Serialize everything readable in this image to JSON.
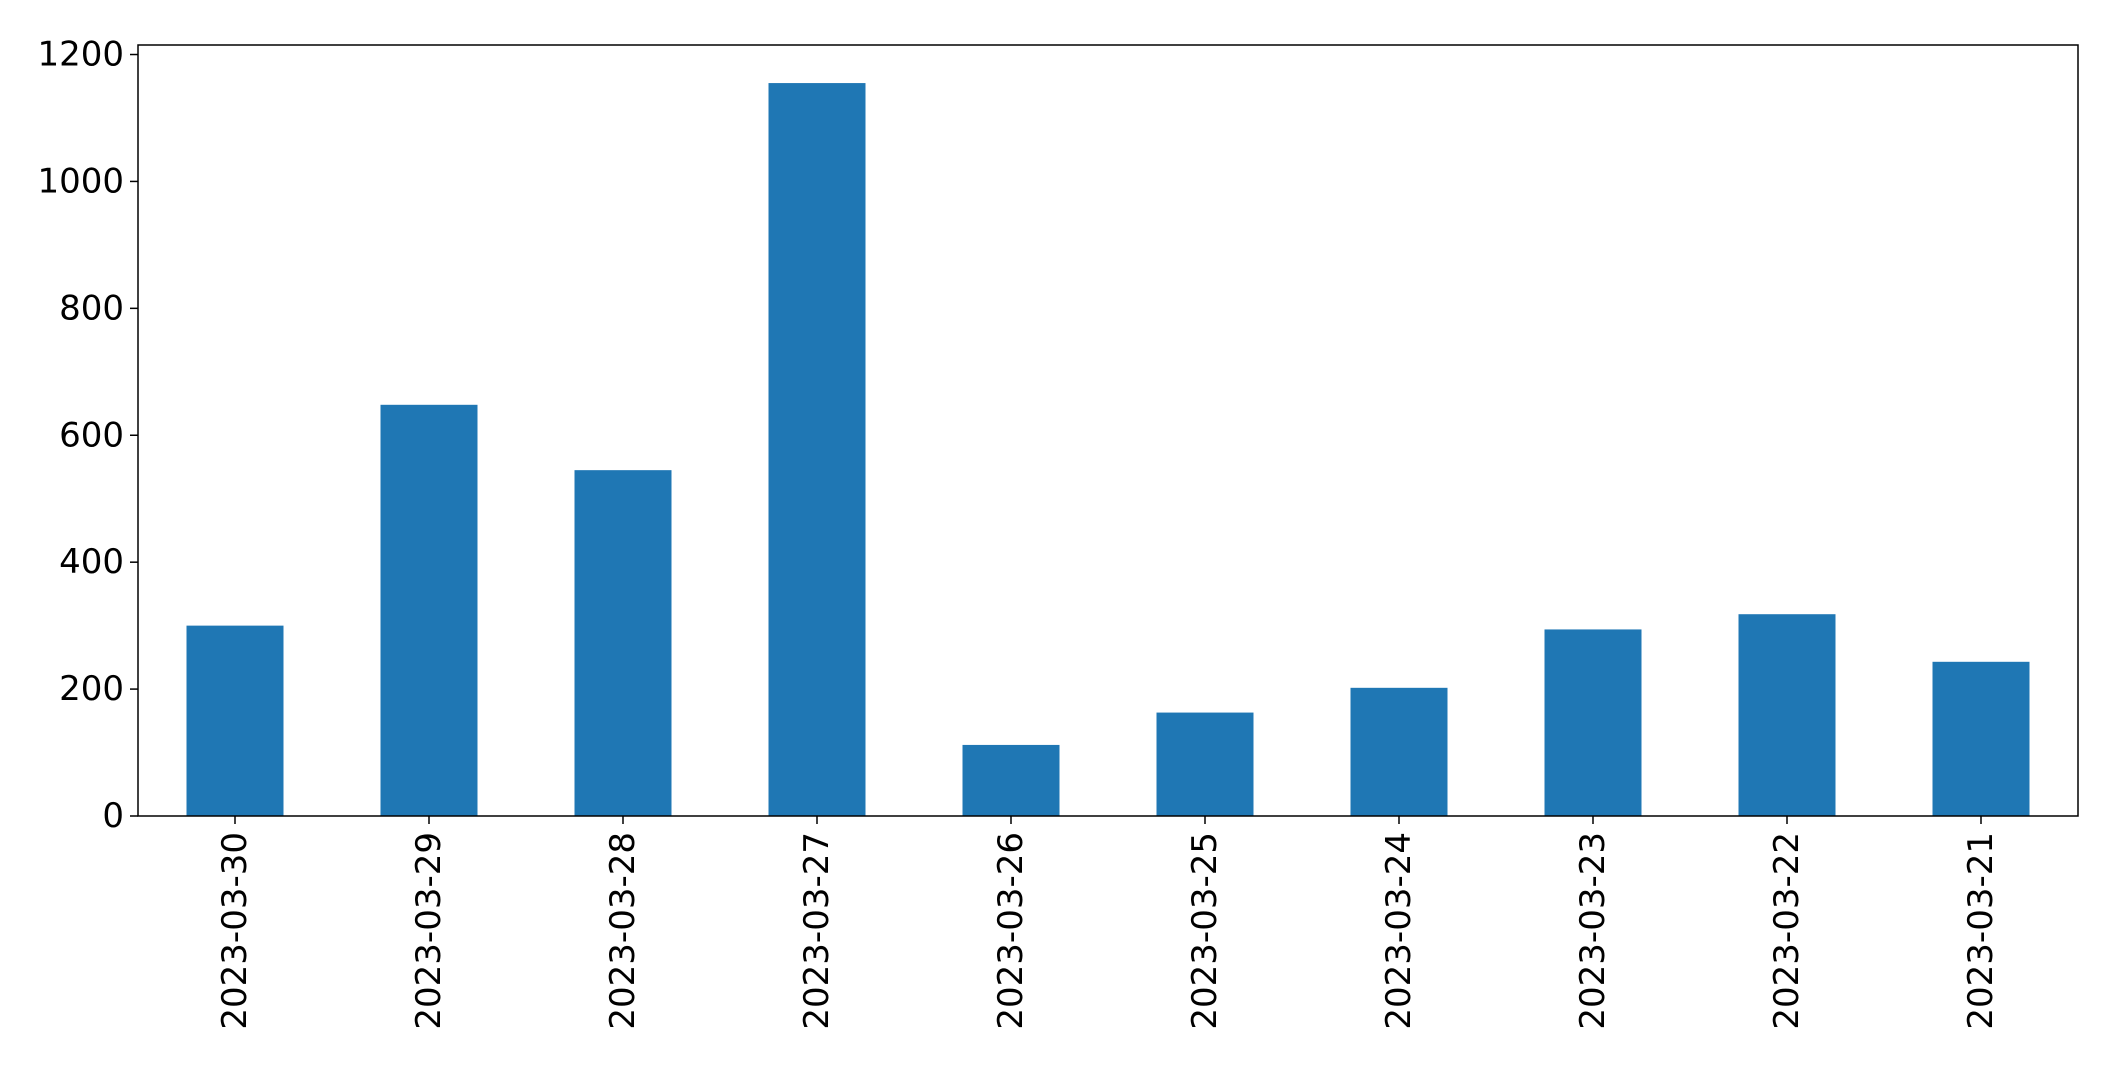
{
  "chart_data": {
    "type": "bar",
    "title": "",
    "xlabel": "",
    "ylabel": "",
    "categories": [
      "2023-03-30",
      "2023-03-29",
      "2023-03-28",
      "2023-03-27",
      "2023-03-26",
      "2023-03-25",
      "2023-03-24",
      "2023-03-23",
      "2023-03-22",
      "2023-03-21"
    ],
    "values": [
      300,
      648,
      545,
      1155,
      112,
      163,
      202,
      294,
      318,
      243
    ],
    "ylim": [
      0,
      1215
    ],
    "yticks": [
      0,
      200,
      400,
      600,
      800,
      1000,
      1200
    ],
    "x_tick_rotation": "vertical",
    "grid": false,
    "legend": "none",
    "bar_color": "#1f77b4"
  }
}
